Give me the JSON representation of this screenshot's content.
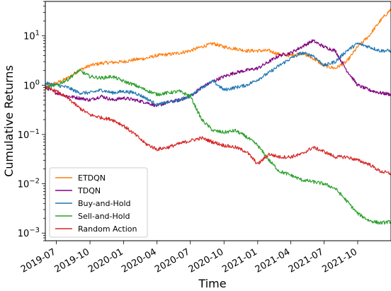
{
  "chart_data": {
    "type": "line",
    "xlabel": "Time",
    "ylabel": "Cumulative Returns",
    "yscale": "log",
    "xlim": [
      "2019-06-01",
      "2021-12-31"
    ],
    "ylim": [
      0.0007,
      50
    ],
    "x_ticks": [
      "2019-07",
      "2019-10",
      "2020-01",
      "2020-04",
      "2020-07",
      "2020-10",
      "2021-01",
      "2021-04",
      "2021-07",
      "2021-10"
    ],
    "y_ticks": [
      {
        "value": 0.001,
        "base": "10",
        "exp": "−3"
      },
      {
        "value": 0.01,
        "base": "10",
        "exp": "−2"
      },
      {
        "value": 0.1,
        "base": "10",
        "exp": "−1"
      },
      {
        "value": 1,
        "base": "10",
        "exp": "0"
      },
      {
        "value": 10,
        "base": "10",
        "exp": "1"
      }
    ],
    "legend_position": "lower left",
    "grid": false,
    "series": [
      {
        "name": "ETDQN",
        "color": "#ff7f0e",
        "x": [
          "2019-06-01",
          "2019-07-01",
          "2019-08-01",
          "2019-09-01",
          "2019-10-01",
          "2019-11-01",
          "2019-12-01",
          "2020-01-01",
          "2020-02-01",
          "2020-03-01",
          "2020-04-01",
          "2020-05-01",
          "2020-06-01",
          "2020-07-01",
          "2020-08-01",
          "2020-09-01",
          "2020-10-01",
          "2020-11-01",
          "2020-12-01",
          "2021-01-01",
          "2021-02-01",
          "2021-03-01",
          "2021-04-01",
          "2021-05-01",
          "2021-06-01",
          "2021-07-01",
          "2021-08-01",
          "2021-09-01",
          "2021-10-01",
          "2021-11-01",
          "2021-12-01",
          "2021-12-31"
        ],
        "y": [
          1.0,
          1.1,
          1.4,
          2.0,
          2.5,
          2.8,
          2.9,
          3.0,
          3.3,
          3.5,
          4.0,
          4.2,
          4.5,
          5.0,
          6.0,
          7.0,
          6.0,
          5.5,
          5.0,
          5.0,
          5.0,
          4.2,
          4.0,
          4.5,
          3.5,
          2.5,
          2.2,
          3.0,
          6.0,
          10.0,
          20.0,
          35.0
        ]
      },
      {
        "name": "TDQN",
        "color": "#800080",
        "x": [
          "2019-06-01",
          "2019-07-01",
          "2019-08-01",
          "2019-09-01",
          "2019-10-01",
          "2019-11-01",
          "2019-12-01",
          "2020-01-01",
          "2020-02-01",
          "2020-03-01",
          "2020-04-01",
          "2020-05-01",
          "2020-06-01",
          "2020-07-01",
          "2020-08-01",
          "2020-09-01",
          "2020-10-01",
          "2020-11-01",
          "2020-12-01",
          "2021-01-01",
          "2021-02-01",
          "2021-03-01",
          "2021-04-01",
          "2021-05-01",
          "2021-06-01",
          "2021-07-01",
          "2021-08-01",
          "2021-09-01",
          "2021-10-01",
          "2021-11-01",
          "2021-12-01",
          "2021-12-31"
        ],
        "y": [
          0.9,
          0.7,
          0.6,
          0.55,
          0.5,
          0.6,
          0.5,
          0.55,
          0.5,
          0.45,
          0.38,
          0.45,
          0.5,
          0.6,
          0.9,
          1.2,
          1.5,
          1.8,
          2.0,
          2.2,
          3.0,
          4.0,
          4.5,
          6.0,
          8.0,
          6.0,
          5.0,
          2.0,
          1.0,
          0.8,
          0.7,
          0.65
        ]
      },
      {
        "name": "Buy-and-Hold",
        "color": "#1f77b4",
        "x": [
          "2019-06-01",
          "2019-07-01",
          "2019-08-01",
          "2019-09-01",
          "2019-10-01",
          "2019-11-01",
          "2019-12-01",
          "2020-01-01",
          "2020-02-01",
          "2020-03-01",
          "2020-04-01",
          "2020-05-01",
          "2020-06-01",
          "2020-07-01",
          "2020-08-01",
          "2020-09-01",
          "2020-10-01",
          "2020-11-01",
          "2020-12-01",
          "2021-01-01",
          "2021-02-01",
          "2021-03-01",
          "2021-04-01",
          "2021-05-01",
          "2021-06-01",
          "2021-07-01",
          "2021-08-01",
          "2021-09-01",
          "2021-10-01",
          "2021-11-01",
          "2021-12-01",
          "2021-12-31"
        ],
        "y": [
          1.1,
          1.0,
          0.9,
          0.7,
          0.7,
          0.8,
          0.7,
          0.75,
          0.7,
          0.55,
          0.4,
          0.45,
          0.5,
          0.6,
          0.9,
          1.2,
          0.8,
          0.9,
          1.0,
          1.3,
          1.8,
          2.5,
          3.5,
          4.5,
          4.0,
          2.5,
          3.0,
          5.0,
          7.0,
          6.0,
          5.0,
          5.0
        ]
      },
      {
        "name": "Sell-and-Hold",
        "color": "#2ca02c",
        "x": [
          "2019-06-01",
          "2019-07-01",
          "2019-08-01",
          "2019-09-01",
          "2019-10-01",
          "2019-11-01",
          "2019-12-01",
          "2020-01-01",
          "2020-02-01",
          "2020-03-01",
          "2020-04-01",
          "2020-05-01",
          "2020-06-01",
          "2020-07-01",
          "2020-08-01",
          "2020-09-01",
          "2020-10-01",
          "2020-11-01",
          "2020-12-01",
          "2021-01-01",
          "2021-02-01",
          "2021-03-01",
          "2021-04-01",
          "2021-05-01",
          "2021-06-01",
          "2021-07-01",
          "2021-08-01",
          "2021-09-01",
          "2021-10-01",
          "2021-11-01",
          "2021-12-01",
          "2021-12-31"
        ],
        "y": [
          0.9,
          1.0,
          1.3,
          2.0,
          1.5,
          1.4,
          1.5,
          1.2,
          1.0,
          0.8,
          0.65,
          0.7,
          0.75,
          0.6,
          0.2,
          0.12,
          0.11,
          0.12,
          0.09,
          0.06,
          0.03,
          0.018,
          0.015,
          0.012,
          0.011,
          0.01,
          0.008,
          0.0045,
          0.0025,
          0.0018,
          0.0016,
          0.0017
        ]
      },
      {
        "name": "Random Action",
        "color": "#d62728",
        "x": [
          "2019-06-01",
          "2019-07-01",
          "2019-08-01",
          "2019-09-01",
          "2019-10-01",
          "2019-11-01",
          "2019-12-01",
          "2020-01-01",
          "2020-02-01",
          "2020-03-01",
          "2020-04-01",
          "2020-05-01",
          "2020-06-01",
          "2020-07-01",
          "2020-08-01",
          "2020-09-01",
          "2020-10-01",
          "2020-11-01",
          "2020-12-01",
          "2021-01-01",
          "2021-02-01",
          "2021-03-01",
          "2021-04-01",
          "2021-05-01",
          "2021-06-01",
          "2021-07-01",
          "2021-08-01",
          "2021-09-01",
          "2021-10-01",
          "2021-11-01",
          "2021-12-01",
          "2021-12-31"
        ],
        "y": [
          0.9,
          0.75,
          0.55,
          0.35,
          0.25,
          0.22,
          0.2,
          0.15,
          0.1,
          0.065,
          0.05,
          0.055,
          0.065,
          0.075,
          0.085,
          0.07,
          0.06,
          0.055,
          0.045,
          0.025,
          0.04,
          0.035,
          0.035,
          0.04,
          0.055,
          0.045,
          0.035,
          0.035,
          0.03,
          0.025,
          0.018,
          0.016
        ]
      }
    ]
  }
}
